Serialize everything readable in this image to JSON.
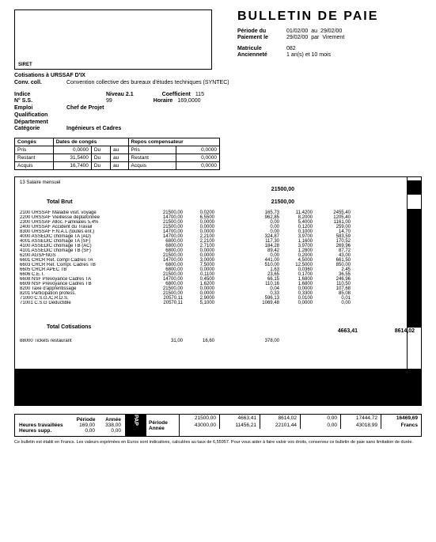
{
  "title": "BULLETIN DE PAIE",
  "siret_label": "SIRET",
  "meta": {
    "periode_label": "Période du",
    "periode_from": "01/02/00",
    "periode_to_label": "au",
    "periode_to": "29/02/00",
    "paiement_label": "Paiement le",
    "paiement_date": "29/02/00",
    "paiement_mode_label": "par",
    "paiement_mode": "Virement",
    "matricule_label": "Matricule",
    "matricule": "082",
    "anciennete_label": "Ancienneté",
    "anciennete": "1 an(s) et 10 mois"
  },
  "conv": {
    "cotisations": "Cotisations à URSSAF D'IX",
    "conv_label": "Conv. coll.",
    "conv_text": "Convention collective des bureaux d'études techniques (SYNTEC)"
  },
  "info": {
    "indice_label": "Indice",
    "niveau_label": "Niveau 2.1",
    "coefficient_label": "Coefficient",
    "coefficient": "115",
    "ss_label": "N° S.S.",
    "ss_value": "99",
    "horaire_label": "Horaire",
    "horaire": "169,0000",
    "emploi_label": "Emploi",
    "emploi": "Chef de Projet",
    "qualif_label": "Qualification",
    "dept_label": "Département",
    "categ_label": "Catégorie",
    "categ": "Ingénieurs et Cadres"
  },
  "conges": {
    "h1": "Congés",
    "h2": "Dates de congés",
    "h3": "Repos compensateur",
    "r1": "Pris",
    "r1v": "0,0000",
    "r1b": "Du",
    "r1c": "au",
    "r1d": "Pris",
    "r1e": "0,0000",
    "r2": "Restant",
    "r2v": "31,5400",
    "r2b": "Du",
    "r2c": "au",
    "r2d": "Restant",
    "r2e": "0,0000",
    "r3": "Acquis",
    "r3v": "16,7400",
    "r3b": "Du",
    "r3c": "au",
    "r3d": "Acquis",
    "r3e": "0,0000"
  },
  "brut_header": "13 Salaire mensuel",
  "brut_amount_top": "21500,00",
  "total_brut_label": "Total Brut",
  "total_brut_amount": "21500,00",
  "lines": [
    {
      "label": "2100 URSSAF Maladie visit. voyage",
      "base": "21500,00",
      "ts": "0,0200",
      "mt": "165,73",
      "tp": "11,4200",
      "mp": "2455,40"
    },
    {
      "label": "2200 URSSAF Vieillesse déplafonnée",
      "base": "14700,00",
      "ts": "6,5500",
      "mt": "962,85",
      "tp": "8,2000",
      "mp": "1205,40"
    },
    {
      "label": "2300 URSSAF Alloc. Familiales 5,4%",
      "base": "21500,00",
      "ts": "0,0000",
      "mt": "0,00",
      "tp": "5,4000",
      "mp": "1161,00"
    },
    {
      "label": "2400 URSSAF Accident du Travail",
      "base": "21500,00",
      "ts": "0,0000",
      "mt": "0,00",
      "tp": "0,1200",
      "mp": "259,00"
    },
    {
      "label": "8300 URSSAF F.N.A.L (toutes ent.)",
      "base": "14700,00",
      "ts": "0,0000",
      "mt": "0,00",
      "tp": "0,1000",
      "mp": "14,70"
    },
    {
      "label": "4000 ASSEDIC chômage TA (AD)",
      "base": "14700,00",
      "ts": "2,2100",
      "mt": "324,87",
      "tp": "3,9700",
      "mp": "583,59"
    },
    {
      "label": "4001 ASSEDIC chômage TA (SF)",
      "base": "6800,00",
      "ts": "2,2100",
      "mt": "117,30",
      "tp": "1,1600",
      "mp": "170,52"
    },
    {
      "label": "4100 ASSEDIC chômage TB (AC)",
      "base": "6800,00",
      "ts": "2,7100",
      "mt": "184,28",
      "tp": "3,9700",
      "mp": "269,96"
    },
    {
      "label": "4101 ASSEDIC chômage TB (SF)",
      "base": "6800,00",
      "ts": "0,0000",
      "mt": "89,42",
      "tp": "1,2800",
      "mp": "87,72"
    },
    {
      "label": "6200 AGS/FNGS",
      "base": "21500,00",
      "ts": "0,0000",
      "mt": "0,00",
      "tp": "0,2000",
      "mp": "43,00"
    },
    {
      "label": "6601 CRCR Ret. compl Cadres TA",
      "base": "14700,00",
      "ts": "3,0000",
      "mt": "441,00",
      "tp": "4,5000",
      "mp": "661,50"
    },
    {
      "label": "6603 CRCR Ret. Compl. Cadres TB",
      "base": "6800,00",
      "ts": "7,5000",
      "mt": "510,00",
      "tp": "12,5000",
      "mp": "850,00"
    },
    {
      "label": "6605 CRCR APEC TB",
      "base": "6800,00",
      "ts": "0,0000",
      "mt": "1,63",
      "tp": "0,0360",
      "mp": "2,45"
    },
    {
      "label": "6606 C.E.T.",
      "base": "21500,00",
      "ts": "0,1100",
      "mt": "23,65",
      "tp": "0,1700",
      "mp": "36,55"
    },
    {
      "label": "6608 NSF Prévoyance Cadres TA",
      "base": "14700,00",
      "ts": "0,4500",
      "mt": "66,15",
      "tp": "1,6800",
      "mp": "246,96"
    },
    {
      "label": "6609 NSF Prévoyance Cadres TB",
      "base": "6800,00",
      "ts": "1,6200",
      "mt": "110,16",
      "tp": "1,6800",
      "mp": "110,50"
    },
    {
      "label": "8200 Taxe d'apprentissage",
      "base": "21500,00",
      "ts": "0,0000",
      "mt": "0,04",
      "tp": "0,0000",
      "mp": "107,68"
    },
    {
      "label": "8201 Participation profess.",
      "base": "21500,00",
      "ts": "0,0000",
      "mt": "0,33",
      "tp": "0,3300",
      "mp": "85,08"
    },
    {
      "label": "71000 C.S.G./C.R.D.S.",
      "base": "20570,11",
      "ts": "2,9000",
      "mt": "596,13",
      "tp": "0,0100",
      "mp": "0,01"
    },
    {
      "label": "71001 C.S.G Déductible",
      "base": "20570,11",
      "ts": "5,1000",
      "mt": "1069,48",
      "tp": "0,0000",
      "mp": "0,00"
    }
  ],
  "total_cot_label": "Total Cotisations",
  "total_cot_mt": "4663,41",
  "total_cot_mp": "8614,02",
  "retenue": {
    "label": "88000 Tickets restaurant",
    "v1": "31,00",
    "v2": "16,60",
    "v3": "378,00"
  },
  "footer_left": {
    "header_p": "Période",
    "header_a": "Année",
    "heures_trav": "Heures travaillées",
    "ht_p": "169,00",
    "ht_a": "338,00",
    "heures_supp": "Heures supp.",
    "hs_p": "0,00",
    "hs_a": "0,00"
  },
  "pap_label": "PAP",
  "pap_sub1": "Période",
  "pap_sub2": "Année",
  "footer_cols": {
    "c1a": "21500,00",
    "c1b": "43000,00",
    "c2a": "4663,41",
    "c2b": "11456,21",
    "c3a": "8614,02",
    "c3b": "22101,44",
    "c4a": "0,00",
    "c4b": "0,00",
    "c5a": "17444,72",
    "c5b": "43018,99",
    "c6a": "16469,69",
    "c6b": "Francs"
  },
  "disclaimer": "Ce bulletin est établi en Francs. Les valeurs exprimées en Euros sont indicatives, calculées au taux de 6,55957. Pour vous aider à faire valoir vos droits, conservez ce bulletin de paie sans limitation de durée."
}
